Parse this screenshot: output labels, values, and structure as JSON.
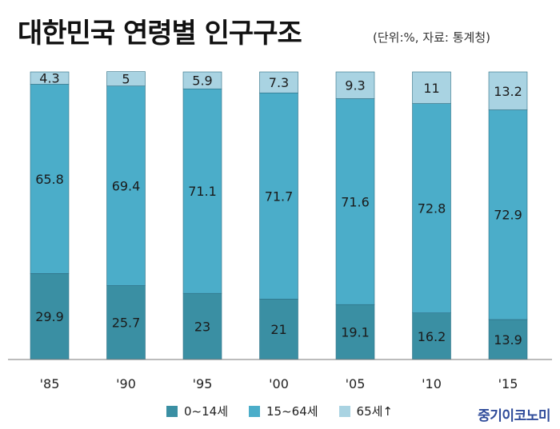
{
  "title": "대한민국 연령별 인구구조",
  "subtitle": "(단위:%, 자료: 통계청)",
  "logo_text": "중기이코노미",
  "colors": {
    "young": "#3a8fa3",
    "working": "#4badc9",
    "elderly": "#a9d3e2",
    "stroke": "#2f6f84",
    "axis": "#7a7a7a"
  },
  "legend": [
    {
      "label": "0~14세"
    },
    {
      "label": "15~64세"
    },
    {
      "label": "65세↑"
    }
  ],
  "chart_data": {
    "type": "bar",
    "stacked": true,
    "categories": [
      "'85",
      "'90",
      "'95",
      "'00",
      "'05",
      "'10",
      "'15"
    ],
    "series": [
      {
        "name": "0~14세",
        "values": [
          29.9,
          25.7,
          23,
          21,
          19.1,
          16.2,
          13.9
        ],
        "labels": [
          "29.9",
          "25.7",
          "23",
          "21",
          "19.1",
          "16.2",
          "13.9"
        ]
      },
      {
        "name": "15~64세",
        "values": [
          65.8,
          69.4,
          71.1,
          71.7,
          71.6,
          72.8,
          72.9
        ],
        "labels": [
          "65.8",
          "69.4",
          "71.1",
          "71.7",
          "71.6",
          "72.8",
          "72.9"
        ]
      },
      {
        "name": "65세↑",
        "values": [
          4.3,
          5,
          5.9,
          7.3,
          9.3,
          11,
          13.2
        ],
        "labels": [
          "4.3",
          "5",
          "5.9",
          "7.3",
          "9.3",
          "11",
          "13.2"
        ]
      }
    ],
    "ylim": [
      0,
      100
    ],
    "unit": "%",
    "grid": false,
    "legend_position": "bottom"
  }
}
